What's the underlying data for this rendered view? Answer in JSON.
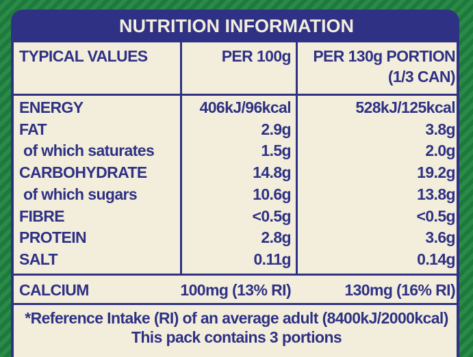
{
  "title": "NUTRITION INFORMATION",
  "table": {
    "header": [
      "TYPICAL VALUES",
      "PER 100g",
      [
        "PER 130g PORTION",
        "(1/3 CAN)"
      ]
    ],
    "rows": [
      [
        "ENERGY",
        "406kJ/96kcal",
        "528kJ/125kcal"
      ],
      [
        "FAT",
        "2.9g",
        "3.8g"
      ],
      [
        "of which saturates",
        "1.5g",
        "2.0g"
      ],
      [
        "CARBOHYDRATE",
        "14.8g",
        "19.2g"
      ],
      [
        "of which sugars",
        "10.6g",
        "13.8g"
      ],
      [
        "FIBRE",
        "<0.5g",
        "<0.5g"
      ],
      [
        "PROTEIN",
        "2.8g",
        "3.6g"
      ],
      [
        "SALT",
        "0.11g",
        "0.14g"
      ]
    ],
    "calcium": [
      "CALCIUM",
      "100mg (13% RI)",
      "130mg (16% RI)"
    ]
  },
  "footnote": [
    "*Reference Intake (RI) of an average adult (8400kJ/2000kcal)",
    "This pack contains 3 portions"
  ]
}
